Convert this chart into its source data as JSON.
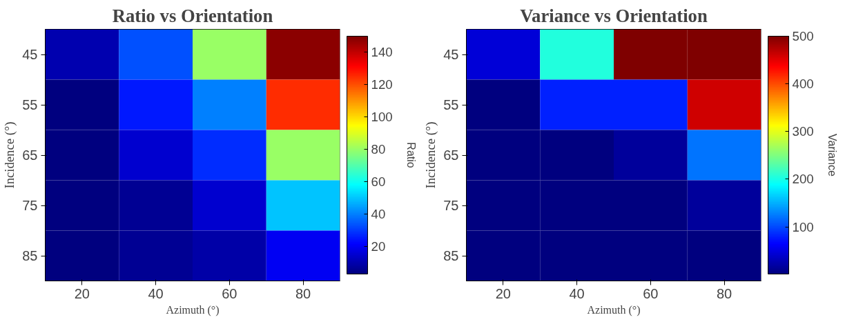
{
  "chart_data": [
    {
      "type": "heatmap",
      "title": "Ratio vs Orientation",
      "xlabel": "Azimuth (°)",
      "ylabel": "Incidence (°)",
      "clabel": "Ratio",
      "categories": [
        "20",
        "40",
        "60",
        "80"
      ],
      "y_categories": [
        "45",
        "55",
        "65",
        "75",
        "85"
      ],
      "cells": [
        [
          10,
          33,
          80,
          148
        ],
        [
          3,
          25,
          40,
          125
        ],
        [
          3,
          15,
          28,
          80
        ],
        [
          3,
          6,
          15,
          50
        ],
        [
          3,
          6,
          9,
          20
        ]
      ],
      "clim": [
        3,
        150
      ],
      "cticks": [
        20,
        40,
        60,
        80,
        100,
        120,
        140
      ],
      "grid": false
    },
    {
      "type": "heatmap",
      "title": "Variance vs Orientation",
      "xlabel": "Azimuth (°)",
      "ylabel": "Incidence (°)",
      "clabel": "Variance",
      "categories": [
        "20",
        "40",
        "60",
        "80"
      ],
      "y_categories": [
        "45",
        "55",
        "65",
        "75",
        "85"
      ],
      "cells": [
        [
          45,
          205,
          500,
          500
        ],
        [
          1,
          80,
          80,
          460
        ],
        [
          1,
          1,
          15,
          120
        ],
        [
          1,
          1,
          1,
          15
        ],
        [
          1,
          1,
          1,
          1
        ]
      ],
      "clim": [
        1,
        500
      ],
      "cticks": [
        100,
        200,
        300,
        400,
        500
      ],
      "grid": false
    }
  ]
}
